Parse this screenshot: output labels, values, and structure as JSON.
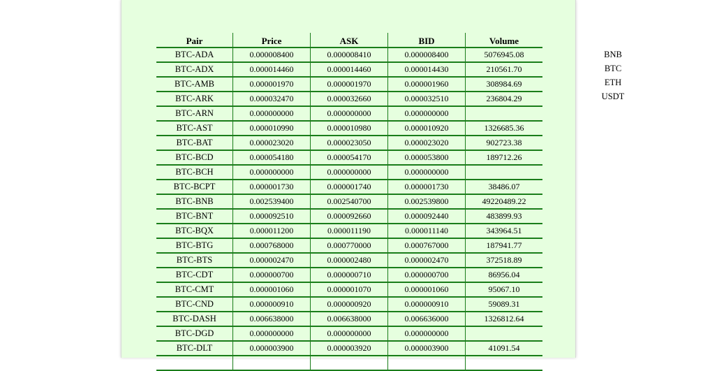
{
  "table": {
    "headers": [
      "Pair",
      "Price",
      "ASK",
      "BID",
      "Volume"
    ],
    "rows": [
      [
        "BTC-ADA",
        "0.000008400",
        "0.000008410",
        "0.000008400",
        "5076945.08"
      ],
      [
        "BTC-ADX",
        "0.000014460",
        "0.000014460",
        "0.000014430",
        "210561.70"
      ],
      [
        "BTC-AMB",
        "0.000001970",
        "0.000001970",
        "0.000001960",
        "308984.69"
      ],
      [
        "BTC-ARK",
        "0.000032470",
        "0.000032660",
        "0.000032510",
        "236804.29"
      ],
      [
        "BTC-ARN",
        "0.000000000",
        "0.000000000",
        "0.000000000",
        ""
      ],
      [
        "BTC-AST",
        "0.000010990",
        "0.000010980",
        "0.000010920",
        "1326685.36"
      ],
      [
        "BTC-BAT",
        "0.000023020",
        "0.000023050",
        "0.000023020",
        "902723.38"
      ],
      [
        "BTC-BCD",
        "0.000054180",
        "0.000054170",
        "0.000053800",
        "189712.26"
      ],
      [
        "BTC-BCH",
        "0.000000000",
        "0.000000000",
        "0.000000000",
        ""
      ],
      [
        "BTC-BCPT",
        "0.000001730",
        "0.000001740",
        "0.000001730",
        "38486.07"
      ],
      [
        "BTC-BNB",
        "0.002539400",
        "0.002540700",
        "0.002539800",
        "49220489.22"
      ],
      [
        "BTC-BNT",
        "0.000092510",
        "0.000092660",
        "0.000092440",
        "483899.93"
      ],
      [
        "BTC-BQX",
        "0.000011200",
        "0.000011190",
        "0.000011140",
        "343964.51"
      ],
      [
        "BTC-BTG",
        "0.000768000",
        "0.000770000",
        "0.000767000",
        "187941.77"
      ],
      [
        "BTC-BTS",
        "0.000002470",
        "0.000002480",
        "0.000002470",
        "372518.89"
      ],
      [
        "BTC-CDT",
        "0.000000700",
        "0.000000710",
        "0.000000700",
        "86956.04"
      ],
      [
        "BTC-CMT",
        "0.000001060",
        "0.000001070",
        "0.000001060",
        "95067.10"
      ],
      [
        "BTC-CND",
        "0.000000910",
        "0.000000920",
        "0.000000910",
        "59089.31"
      ],
      [
        "BTC-DASH",
        "0.006638000",
        "0.006638000",
        "0.006636000",
        "1326812.64"
      ],
      [
        "BTC-DGD",
        "0.000000000",
        "0.000000000",
        "0.000000000",
        ""
      ],
      [
        "BTC-DLT",
        "0.000003900",
        "0.000003920",
        "0.000003900",
        "41091.54"
      ],
      [
        "",
        "",
        "",
        "",
        ""
      ]
    ]
  },
  "markets": {
    "items": [
      "BNB",
      "BTC",
      "ETH",
      "USDT"
    ]
  }
}
